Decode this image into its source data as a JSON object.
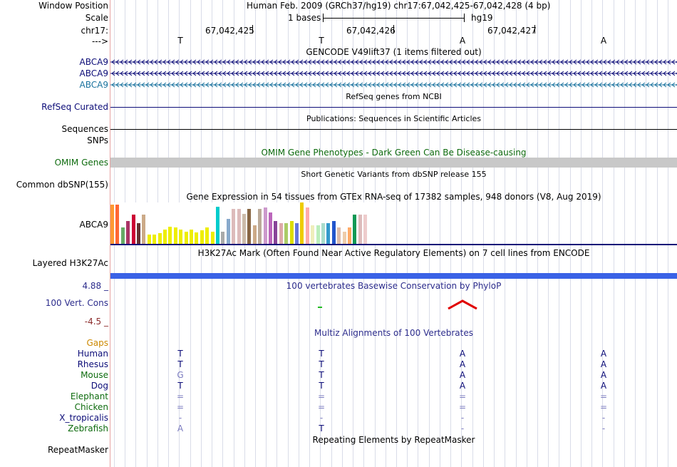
{
  "colors": {
    "gene_blue": "#0c0c78",
    "gene_teal": "#19729e",
    "omim_green": "#0e6b0e",
    "conserv_red": "#e00000",
    "gaps_orange": "#cc8800",
    "phylop_blue": "#2c2c8c",
    "h3k27ac_blue": "#3a62e6",
    "omim_gray": "#c8c8c8"
  },
  "header": {
    "window_position_label": "Window Position",
    "window_position_value": "Human Feb. 2009 (GRCh37/hg19)   chr17:67,042,425-67,042,428 (4 bp)",
    "scale_label": "Scale",
    "scale_value": "1 bases",
    "scale_assembly": "hg19",
    "chrom_label": "chr17:",
    "coords": [
      "67,042,425",
      "67,042,426",
      "67,042,427"
    ],
    "strand_label": "--->",
    "bases": [
      "T",
      "T",
      "A",
      "A"
    ]
  },
  "tracks": {
    "gencode": {
      "title": "GENCODE V49lift37 (1 items filtered out)",
      "genes": [
        "ABCA9",
        "ABCA9",
        "ABCA9"
      ]
    },
    "refseq": {
      "title": "RefSeq genes from NCBI",
      "label": "RefSeq Curated"
    },
    "publications": {
      "title": "Publications: Sequences in Scientific Articles",
      "label": "Sequences"
    },
    "snps": {
      "label": "SNPs"
    },
    "omim": {
      "title": "OMIM Gene Phenotypes - Dark Green Can Be Disease-causing",
      "label": "OMIM Genes"
    },
    "dbsnp": {
      "title": "Short Genetic Variants from dbSNP release 155",
      "label": "Common dbSNP(155)"
    },
    "gtex": {
      "title": "Gene Expression in 54 tissues from GTEx RNA-seq of 17382 samples, 948 donors (V8, Aug 2019)",
      "label": "ABCA9",
      "bars": [
        {
          "v": 0.95,
          "c": "#ff9933"
        },
        {
          "v": 0.95,
          "c": "#ff6633"
        },
        {
          "v": 0.4,
          "c": "#66aa66"
        },
        {
          "v": 0.55,
          "c": "#aa3366"
        },
        {
          "v": 0.7,
          "c": "#cc0033"
        },
        {
          "v": 0.5,
          "c": "#663333"
        },
        {
          "v": 0.7,
          "c": "#ccaa88"
        },
        {
          "v": 0.22,
          "c": "#eeee00"
        },
        {
          "v": 0.22,
          "c": "#eeee00"
        },
        {
          "v": 0.25,
          "c": "#eeee00"
        },
        {
          "v": 0.35,
          "c": "#eeee00"
        },
        {
          "v": 0.42,
          "c": "#eeee00"
        },
        {
          "v": 0.4,
          "c": "#eeee00"
        },
        {
          "v": 0.35,
          "c": "#eeee00"
        },
        {
          "v": 0.3,
          "c": "#eeee00"
        },
        {
          "v": 0.35,
          "c": "#eeee00"
        },
        {
          "v": 0.28,
          "c": "#eeee00"
        },
        {
          "v": 0.33,
          "c": "#eeee00"
        },
        {
          "v": 0.4,
          "c": "#eeee00"
        },
        {
          "v": 0.3,
          "c": "#eeee00"
        },
        {
          "v": 0.9,
          "c": "#00cccc"
        },
        {
          "v": 0.3,
          "c": "#aaaaaa"
        },
        {
          "v": 0.6,
          "c": "#88aacc"
        },
        {
          "v": 0.85,
          "c": "#ddbbbb"
        },
        {
          "v": 0.85,
          "c": "#ddbbbb"
        },
        {
          "v": 0.72,
          "c": "#ccbbaa"
        },
        {
          "v": 0.85,
          "c": "#886644"
        },
        {
          "v": 0.45,
          "c": "#ccaa88"
        },
        {
          "v": 0.85,
          "c": "#bbaa99"
        },
        {
          "v": 0.88,
          "c": "#cc99cc"
        },
        {
          "v": 0.75,
          "c": "#bb66bb"
        },
        {
          "v": 0.55,
          "c": "#884499"
        },
        {
          "v": 0.5,
          "c": "#ddaaaa"
        },
        {
          "v": 0.5,
          "c": "#aacc66"
        },
        {
          "v": 0.55,
          "c": "#dddd00"
        },
        {
          "v": 0.5,
          "c": "#6677dd"
        },
        {
          "v": 1.0,
          "c": "#eecc00"
        },
        {
          "v": 0.88,
          "c": "#ffaaaa"
        },
        {
          "v": 0.45,
          "c": "#eeeebb"
        },
        {
          "v": 0.45,
          "c": "#bbeebb"
        },
        {
          "v": 0.5,
          "c": "#aaddcc"
        },
        {
          "v": 0.5,
          "c": "#3399cc"
        },
        {
          "v": 0.55,
          "c": "#2255cc"
        },
        {
          "v": 0.4,
          "c": "#ddbbaa"
        },
        {
          "v": 0.3,
          "c": "#eeccaa"
        },
        {
          "v": 0.4,
          "c": "#ffaa66"
        },
        {
          "v": 0.7,
          "c": "#119955"
        },
        {
          "v": 0.7,
          "c": "#ddbbbb"
        },
        {
          "v": 0.7,
          "c": "#eecccc"
        }
      ]
    },
    "h3k27ac": {
      "title": "H3K27Ac Mark (Often Found Near Active Regulatory Elements) on 7 cell lines from ENCODE",
      "label": "Layered H3K27Ac"
    },
    "phylop": {
      "title": "100 vertebrates Basewise Conservation by PhyloP",
      "label": "100 Vert. Cons",
      "max_label": "4.88 _",
      "min_label": "-4.5 _"
    },
    "multiz": {
      "title": "Multiz Alignments of 100 Vertebrates",
      "gaps_label": "Gaps",
      "species": [
        {
          "name": "Human",
          "bases": [
            "T",
            "T",
            "A",
            "A"
          ]
        },
        {
          "name": "Rhesus",
          "bases": [
            "T",
            "T",
            "A",
            "A"
          ]
        },
        {
          "name": "Mouse",
          "bases": [
            "G",
            "T",
            "A",
            "A"
          ]
        },
        {
          "name": "Dog",
          "bases": [
            "T",
            "T",
            "A",
            "A"
          ]
        },
        {
          "name": "Elephant",
          "bases": [
            "=",
            "=",
            "=",
            "="
          ]
        },
        {
          "name": "Chicken",
          "bases": [
            "=",
            "=",
            "=",
            "="
          ]
        },
        {
          "name": "X_tropicalis",
          "bases": [
            "-",
            "-",
            "-",
            "-"
          ]
        },
        {
          "name": "Zebrafish",
          "bases": [
            "A",
            "T",
            "-",
            "-"
          ]
        }
      ]
    },
    "repeatmasker": {
      "title": "Repeating Elements by RepeatMasker",
      "label": "RepeatMasker"
    }
  }
}
